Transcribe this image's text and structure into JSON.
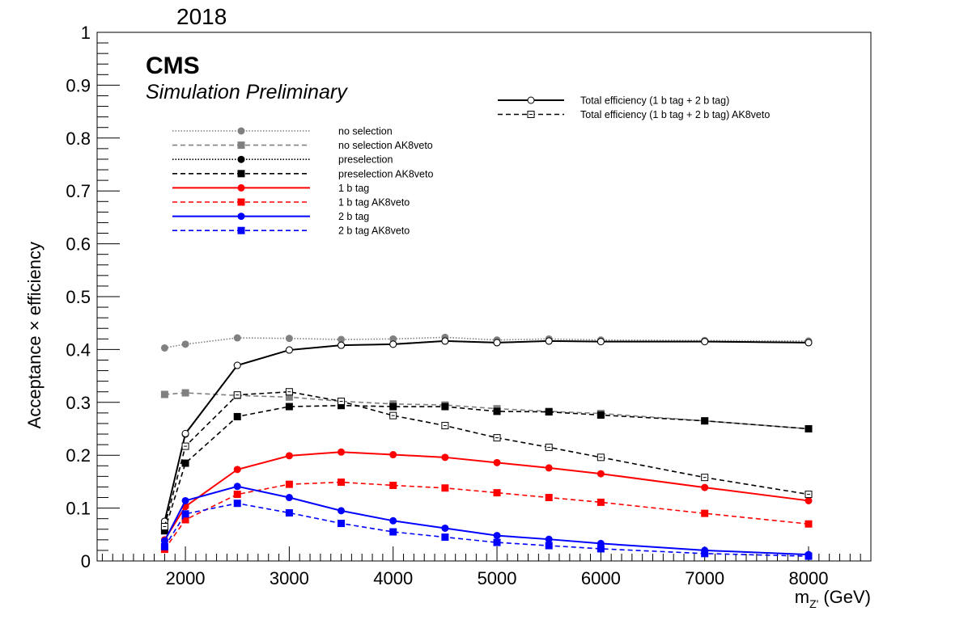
{
  "header": {
    "year": "2018",
    "cms": "CMS",
    "subtitle": "Simulation Preliminary"
  },
  "chart_data": {
    "type": "line",
    "xlabel_main": "m",
    "xlabel_sub": "Z'",
    "xlabel_unit": "(GeV)",
    "ylabel": "Acceptance × efficiency",
    "xlim": [
      1150,
      8600
    ],
    "ylim": [
      0,
      1
    ],
    "x_ticks": [
      2000,
      3000,
      4000,
      5000,
      6000,
      7000,
      8000
    ],
    "y_ticks": [
      0,
      0.1,
      0.2,
      0.3,
      0.4,
      0.5,
      0.6,
      0.7,
      0.8,
      0.9,
      1
    ],
    "y_tick_labels": [
      "0",
      "0.1",
      "0.2",
      "0.3",
      "0.4",
      "0.5",
      "0.6",
      "0.7",
      "0.8",
      "0.9",
      "1"
    ],
    "grid": false,
    "legend_position": "top-left",
    "legend2_position": "top-right",
    "series": [
      {
        "name": "no selection",
        "color": "#808080",
        "dash": "dotted",
        "marker": "circle",
        "x": [
          1800,
          2000,
          2500,
          3000,
          3500,
          4000,
          4500,
          5000,
          5500,
          6000,
          7000,
          8000
        ],
        "y": [
          0.403,
          0.41,
          0.422,
          0.421,
          0.419,
          0.42,
          0.423,
          0.418,
          0.42,
          0.418,
          0.417,
          0.416
        ]
      },
      {
        "name": "no selection AK8veto",
        "color": "#808080",
        "dash": "dashed",
        "marker": "square",
        "x": [
          1800,
          2000,
          2500,
          3000,
          3500,
          4000,
          4500,
          5000,
          5500,
          6000,
          7000,
          8000
        ],
        "y": [
          0.315,
          0.318,
          0.313,
          0.31,
          0.302,
          0.297,
          0.295,
          0.288,
          0.283,
          0.279,
          0.265,
          0.25
        ]
      },
      {
        "name": "preselection",
        "color": "#000000",
        "dash": "dotted",
        "marker": "circle",
        "x": [
          1800,
          2000,
          2500,
          3000,
          3500,
          4000,
          4500,
          5000,
          5500,
          6000,
          7000,
          8000
        ],
        "y": [
          0.075,
          0.24,
          0.37,
          0.399,
          0.408,
          0.41,
          0.416,
          0.413,
          0.416,
          0.415,
          0.415,
          0.413
        ]
      },
      {
        "name": "preselection AK8veto",
        "color": "#000000",
        "dash": "dashed",
        "marker": "square",
        "x": [
          1800,
          2000,
          2500,
          3000,
          3500,
          4000,
          4500,
          5000,
          5500,
          6000,
          7000,
          8000
        ],
        "y": [
          0.057,
          0.185,
          0.273,
          0.292,
          0.294,
          0.292,
          0.292,
          0.283,
          0.282,
          0.276,
          0.265,
          0.25
        ]
      },
      {
        "name": "1 b tag",
        "color": "#ff0000",
        "dash": "solid",
        "marker": "circle",
        "x": [
          1800,
          2000,
          2500,
          3000,
          3500,
          4000,
          4500,
          5000,
          5500,
          6000,
          7000,
          8000
        ],
        "y": [
          0.04,
          0.103,
          0.173,
          0.199,
          0.206,
          0.201,
          0.196,
          0.186,
          0.176,
          0.165,
          0.139,
          0.114
        ]
      },
      {
        "name": "1 b tag AK8veto",
        "color": "#ff0000",
        "dash": "dashed",
        "marker": "square",
        "x": [
          1800,
          2000,
          2500,
          3000,
          3500,
          4000,
          4500,
          5000,
          5500,
          6000,
          7000,
          8000
        ],
        "y": [
          0.022,
          0.078,
          0.126,
          0.145,
          0.149,
          0.143,
          0.138,
          0.129,
          0.12,
          0.111,
          0.09,
          0.07
        ]
      },
      {
        "name": "2 b tag",
        "color": "#0000ff",
        "dash": "solid",
        "marker": "circle",
        "x": [
          1800,
          2000,
          2500,
          3000,
          3500,
          4000,
          4500,
          5000,
          5500,
          6000,
          7000,
          8000
        ],
        "y": [
          0.038,
          0.114,
          0.141,
          0.12,
          0.095,
          0.076,
          0.062,
          0.048,
          0.041,
          0.033,
          0.02,
          0.012
        ]
      },
      {
        "name": "2 b tag AK8veto",
        "color": "#0000ff",
        "dash": "dashed",
        "marker": "square",
        "x": [
          1800,
          2000,
          2500,
          3000,
          3500,
          4000,
          4500,
          5000,
          5500,
          6000,
          7000,
          8000
        ],
        "y": [
          0.027,
          0.089,
          0.109,
          0.091,
          0.071,
          0.055,
          0.045,
          0.035,
          0.029,
          0.023,
          0.014,
          0.009
        ]
      },
      {
        "name": "Total efficiency (1 b tag + 2 b tag)",
        "color": "#000000",
        "dash": "solid",
        "marker": "open-circle",
        "legend": 2,
        "x": [
          1800,
          2000,
          2500,
          3000,
          3500,
          4000,
          4500,
          5000,
          5500,
          6000,
          7000,
          8000
        ],
        "y": [
          0.075,
          0.241,
          0.37,
          0.399,
          0.408,
          0.41,
          0.416,
          0.413,
          0.416,
          0.415,
          0.415,
          0.413
        ]
      },
      {
        "name": "Total efficiency (1 b tag + 2 b tag) AK8veto",
        "color": "#000000",
        "dash": "dashed",
        "marker": "open-square",
        "legend": 2,
        "x": [
          1800,
          2000,
          2500,
          3000,
          3500,
          4000,
          4500,
          5000,
          5500,
          6000,
          7000,
          8000
        ],
        "y": [
          0.065,
          0.217,
          0.314,
          0.32,
          0.302,
          0.275,
          0.256,
          0.233,
          0.215,
          0.196,
          0.158,
          0.126
        ]
      }
    ]
  }
}
